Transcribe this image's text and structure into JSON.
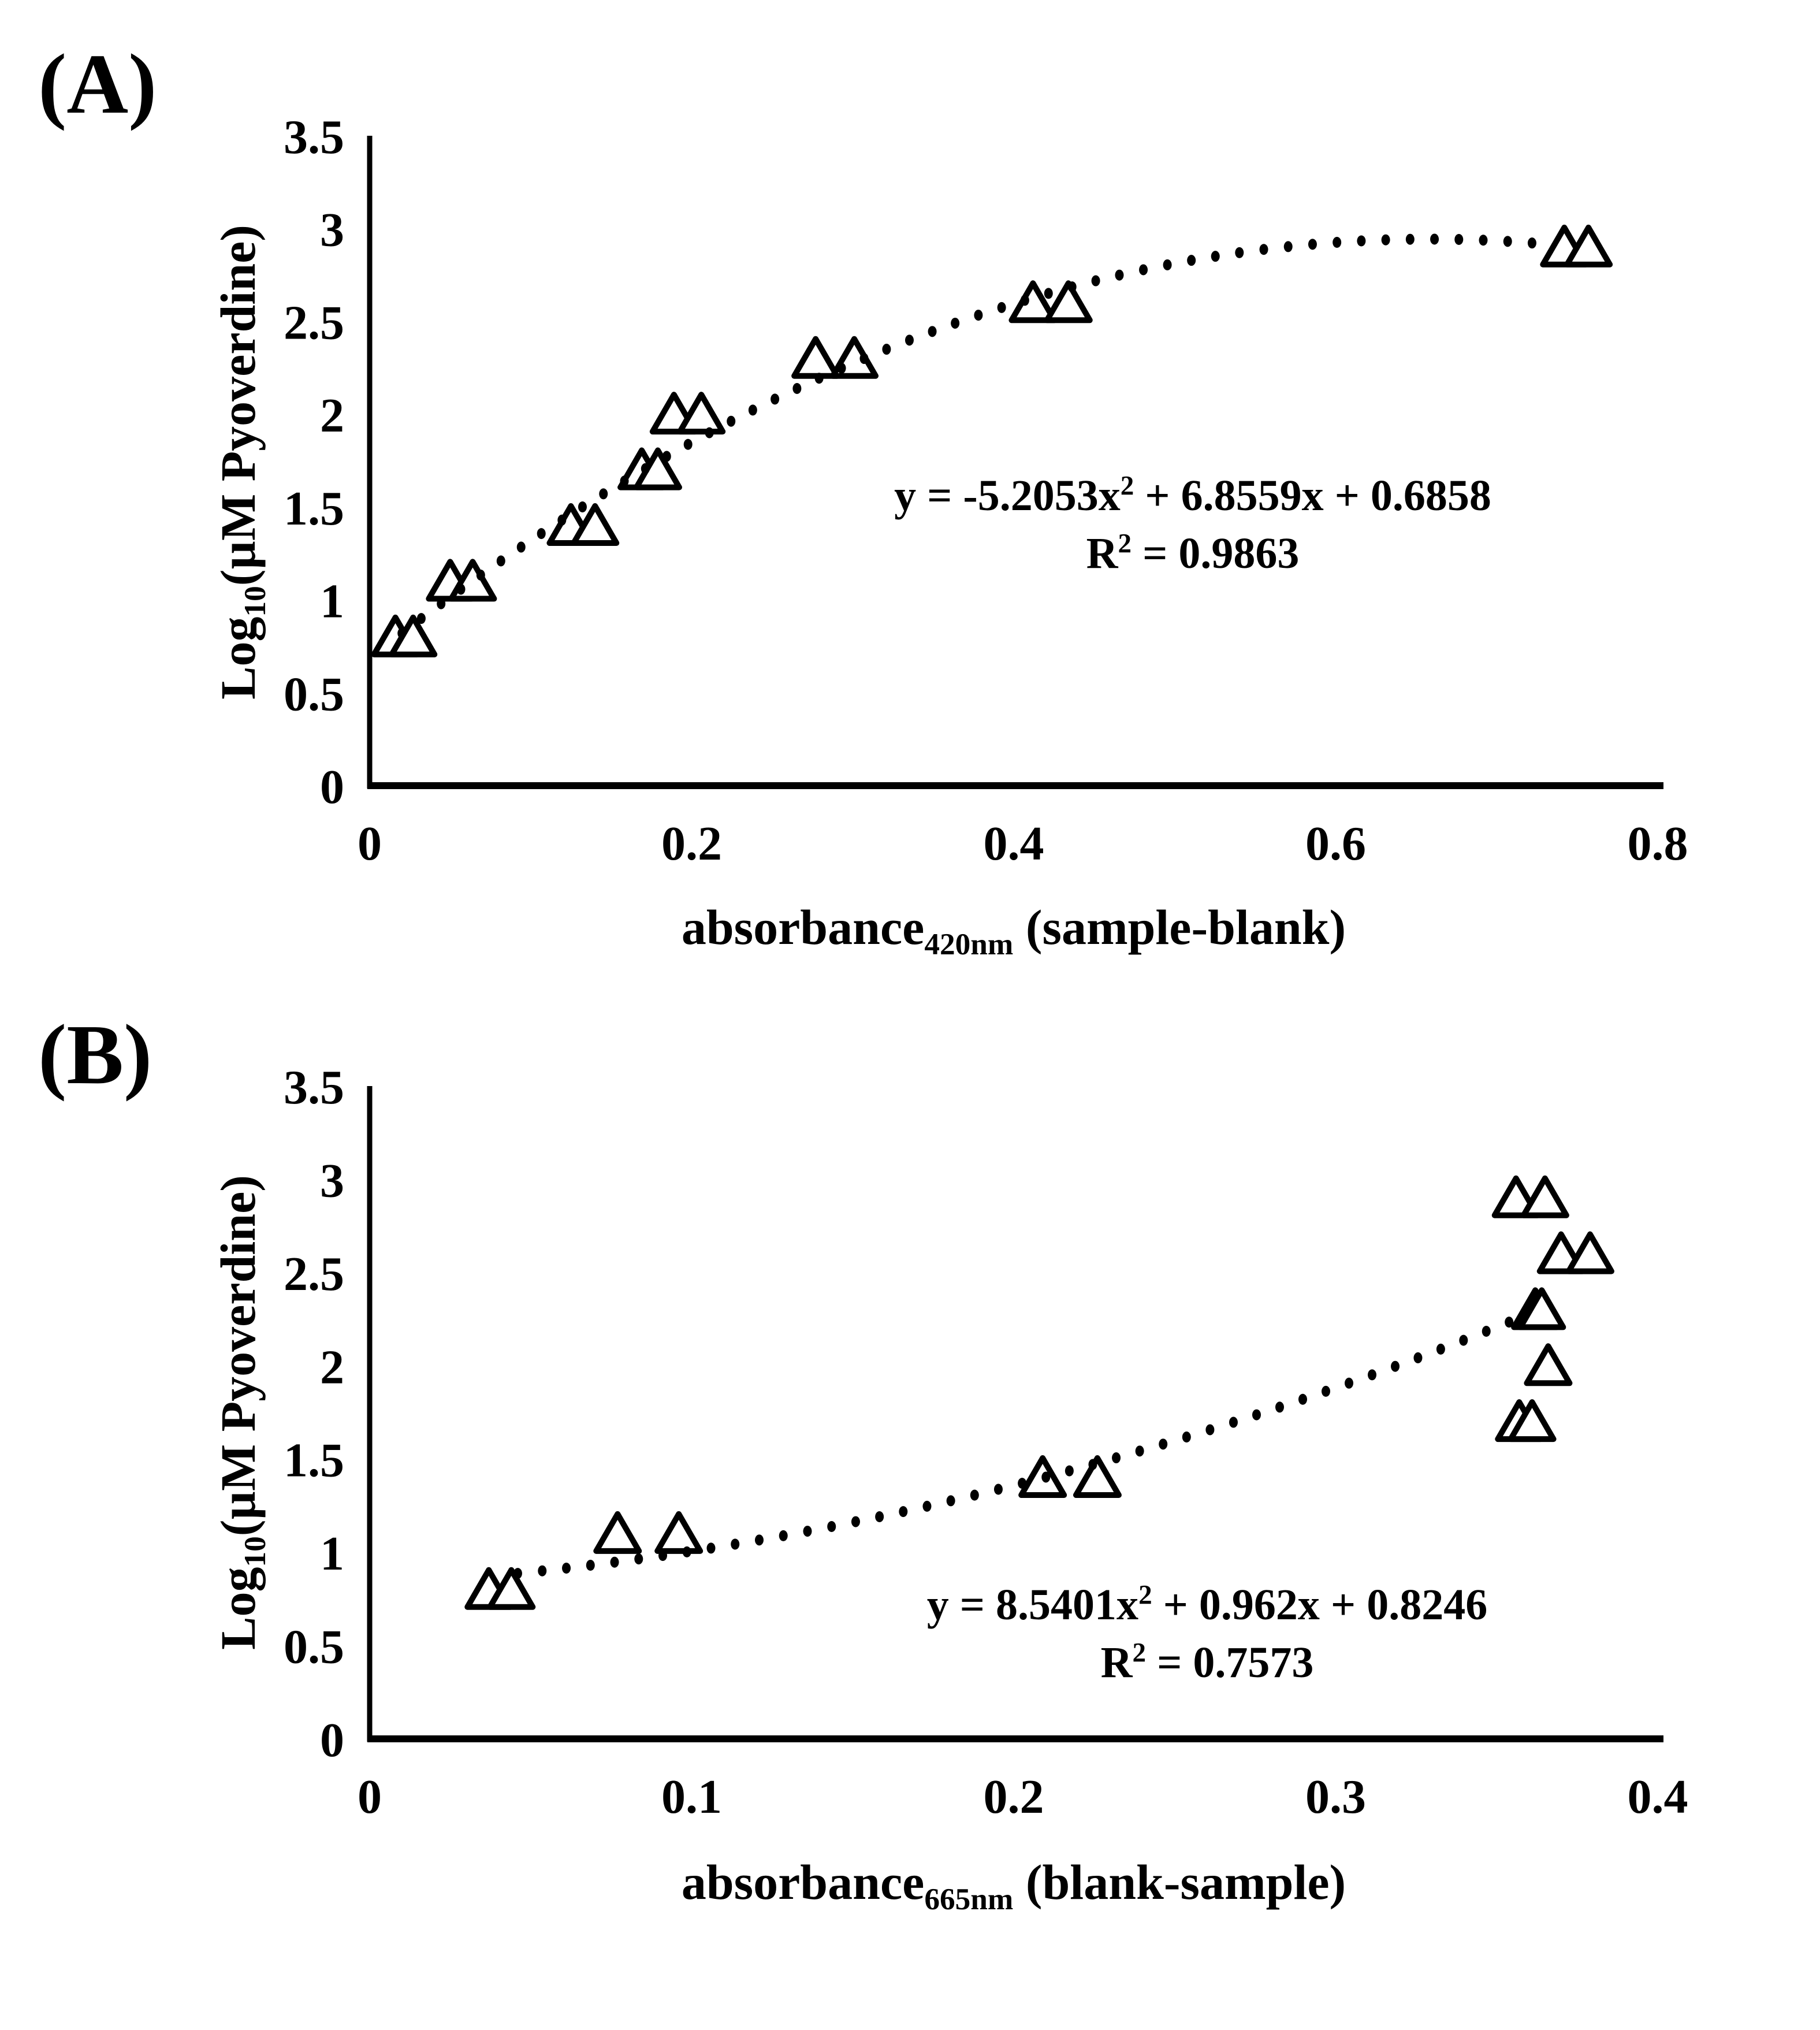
{
  "colors": {
    "foreground": "#000000",
    "background": "#ffffff"
  },
  "figure": {
    "panels": [
      {
        "label": "(A)",
        "ylabel": {
          "pre": "Log",
          "sub": "10",
          "rest": "(µM Pyoverdine)"
        },
        "xlabel": {
          "pre": "absorbance",
          "sub": "420nm",
          "rest": " (sample-blank)"
        },
        "equation": {
          "line1_pre": "y = -5.2053x",
          "line1_sup": "2",
          "line1_rest": " + 6.8559x + 0.6858",
          "line2_pre": "R",
          "line2_sup": "2",
          "line2_rest": " = 0.9863"
        }
      },
      {
        "label": "(B)",
        "ylabel": {
          "pre": "Log",
          "sub": "10",
          "rest": "(µM Pyoverdine)"
        },
        "xlabel": {
          "pre": "absorbance",
          "sub": "665nm",
          "rest": " (blank-sample)"
        },
        "equation": {
          "line1_pre": "y = 8.5401x",
          "line1_sup": "2",
          "line1_rest": " + 0.962x + 0.8246",
          "line2_pre": "R",
          "line2_sup": "2",
          "line2_rest": " = 0.7573"
        }
      }
    ]
  },
  "chart_data": [
    {
      "type": "scatter",
      "panel": "A",
      "title": "(A)",
      "xlabel": "absorbance 420nm (sample-blank)",
      "ylabel": "Log10(µM Pyoverdine)",
      "xlim": [
        0,
        0.8
      ],
      "ylim": [
        0,
        3.5
      ],
      "x_ticks": [
        0,
        0.2,
        0.4,
        0.6,
        0.8
      ],
      "y_ticks": [
        0,
        0.5,
        1,
        1.5,
        2,
        2.5,
        3,
        3.5
      ],
      "grid": false,
      "legend": false,
      "marker": "open-triangle",
      "points": [
        [
          0.016,
          0.8
        ],
        [
          0.027,
          0.8
        ],
        [
          0.05,
          1.1
        ],
        [
          0.064,
          1.1
        ],
        [
          0.125,
          1.4
        ],
        [
          0.14,
          1.4
        ],
        [
          0.169,
          1.7
        ],
        [
          0.179,
          1.7
        ],
        [
          0.189,
          2.0
        ],
        [
          0.206,
          2.0
        ],
        [
          0.277,
          2.3
        ],
        [
          0.301,
          2.3
        ],
        [
          0.412,
          2.6
        ],
        [
          0.434,
          2.6
        ],
        [
          0.742,
          2.9
        ],
        [
          0.757,
          2.9
        ]
      ],
      "trendline": {
        "style": "dotted",
        "type": "polynomial-2",
        "a": -5.2053,
        "b": 6.8559,
        "c": 0.6858,
        "x_start": 0.02,
        "x_end": 0.73,
        "equation": "y = -5.2053x² + 6.8559x + 0.6858",
        "r_squared": "R² = 0.9863"
      }
    },
    {
      "type": "scatter",
      "panel": "B",
      "title": "(B)",
      "xlabel": "absorbance 665nm (blank-sample)",
      "ylabel": "Log10(µM Pyoverdine)",
      "xlim": [
        0,
        0.4
      ],
      "ylim": [
        0,
        3.5
      ],
      "x_ticks": [
        0,
        0.1,
        0.2,
        0.3,
        0.4
      ],
      "y_ticks": [
        0,
        0.5,
        1,
        1.5,
        2,
        2.5,
        3,
        3.5
      ],
      "grid": false,
      "legend": false,
      "marker": "open-triangle",
      "points": [
        [
          0.037,
          0.8
        ],
        [
          0.044,
          0.8
        ],
        [
          0.077,
          1.1
        ],
        [
          0.096,
          1.1
        ],
        [
          0.209,
          1.4
        ],
        [
          0.226,
          1.4
        ],
        [
          0.357,
          1.7
        ],
        [
          0.361,
          1.7
        ],
        [
          0.366,
          2.0
        ],
        [
          0.362,
          2.3
        ],
        [
          0.364,
          2.3
        ],
        [
          0.37,
          2.6
        ],
        [
          0.379,
          2.6
        ],
        [
          0.356,
          2.9
        ],
        [
          0.365,
          2.9
        ]
      ],
      "trendline": {
        "style": "dotted",
        "type": "polynomial-2",
        "a": 8.5401,
        "b": 0.962,
        "c": 0.8246,
        "x_start": 0.046,
        "x_end": 0.358,
        "equation": "y = 8.5401x² + 0.962x + 0.8246",
        "r_squared": "R² = 0.7573"
      }
    }
  ]
}
